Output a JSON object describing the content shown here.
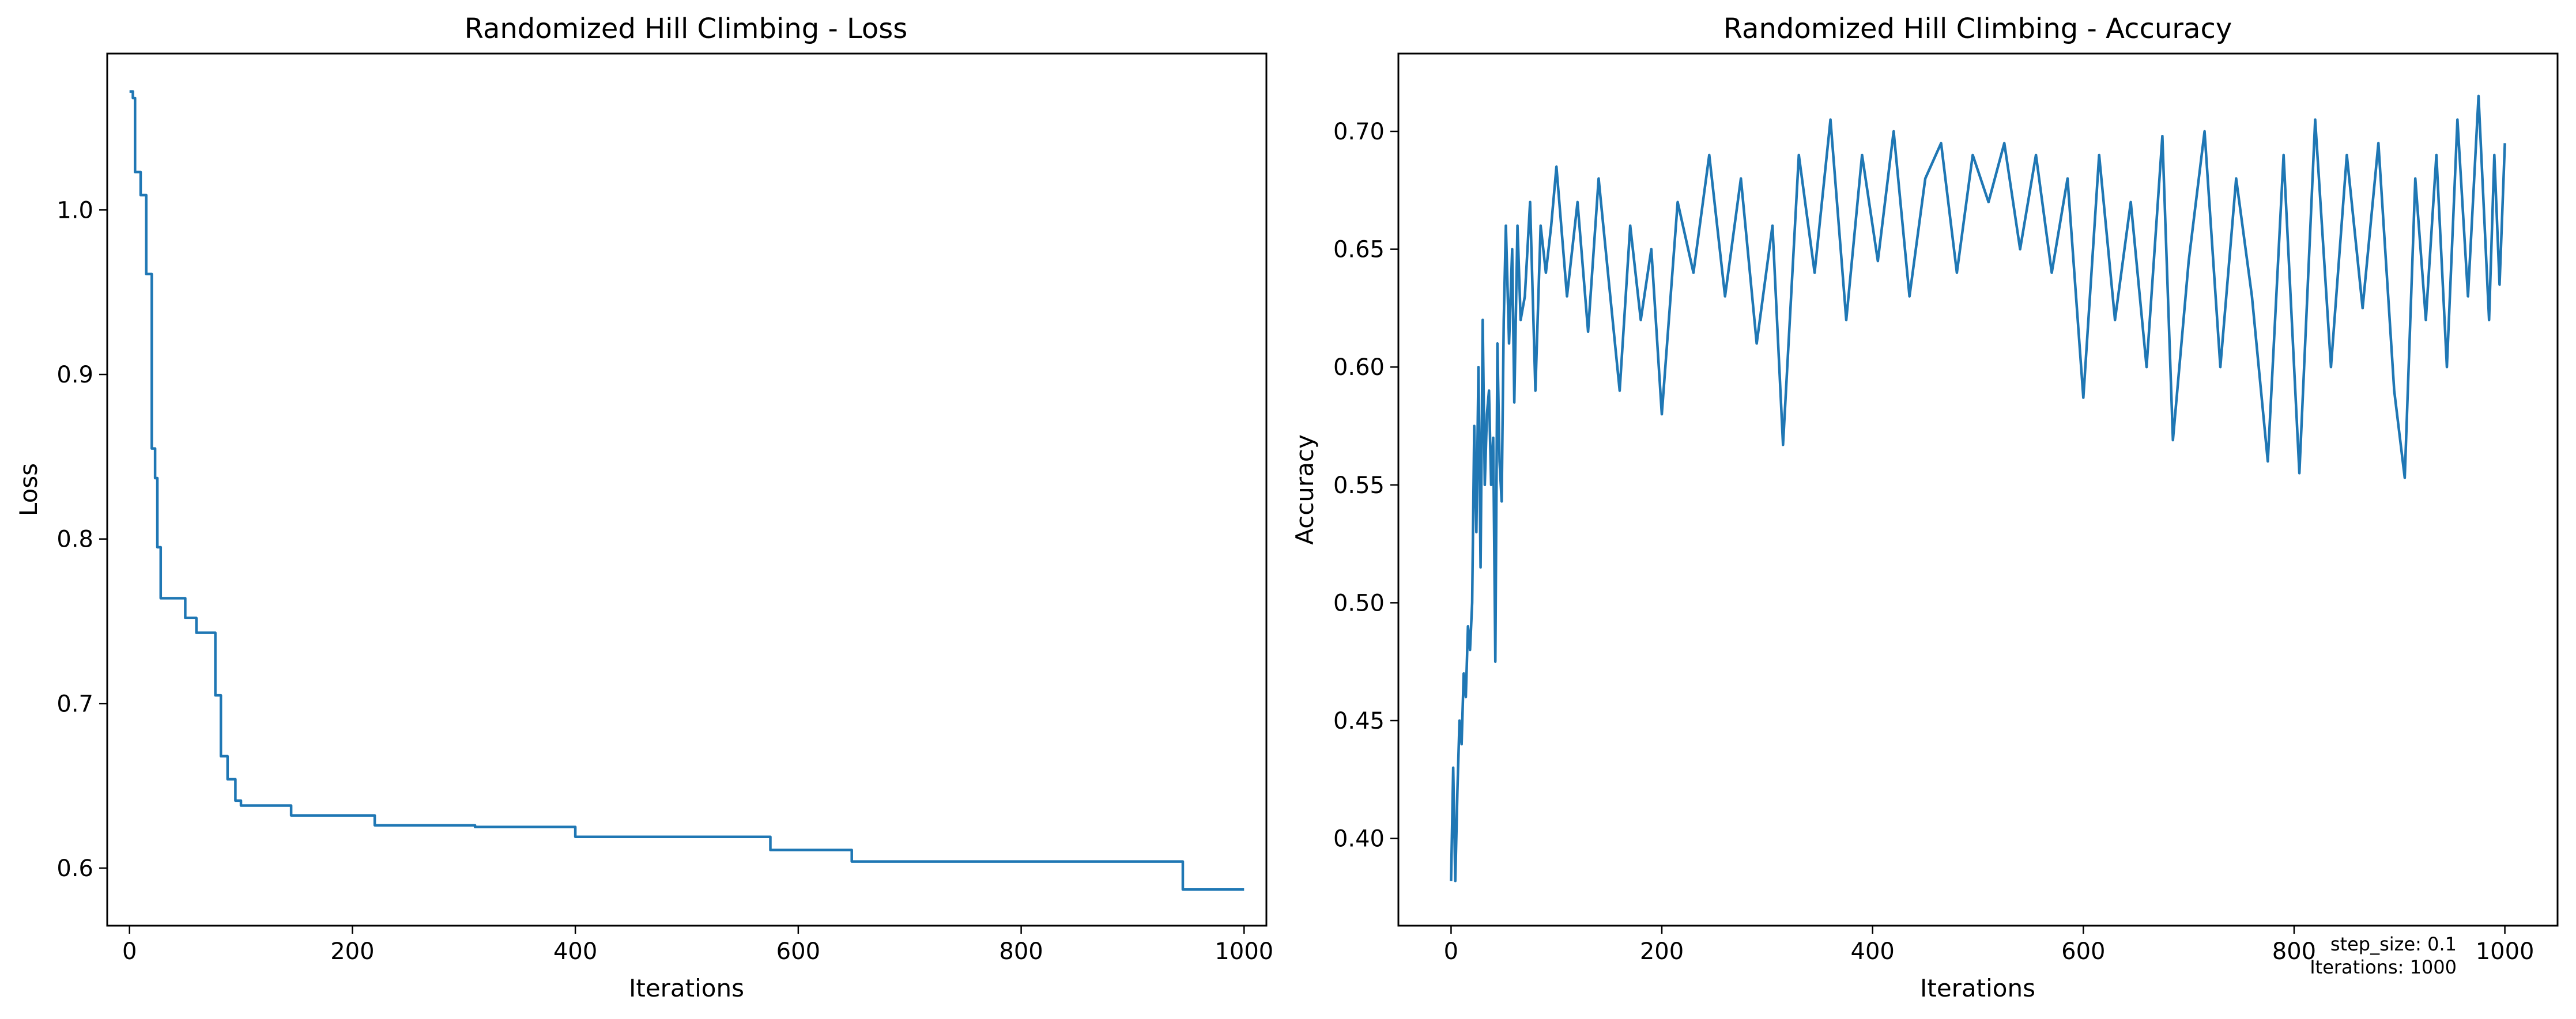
{
  "chart_data": [
    {
      "type": "line",
      "title": "Randomized Hill Climbing - Loss",
      "xlabel": "Iterations",
      "ylabel": "Loss",
      "xlim": [
        -20,
        1020
      ],
      "ylim": [
        0.565,
        1.095
      ],
      "xticks": [
        0,
        200,
        400,
        600,
        800,
        1000
      ],
      "yticks": [
        0.6,
        0.7,
        0.8,
        0.9,
        1.0
      ],
      "step": true,
      "color": "#1f77b4",
      "series": [
        {
          "name": "Loss",
          "x": [
            0,
            3,
            5,
            10,
            15,
            20,
            23,
            25,
            28,
            50,
            60,
            70,
            77,
            82,
            88,
            95,
            100,
            110,
            145,
            220,
            310,
            400,
            575,
            648,
            945,
            1000
          ],
          "y": [
            1.072,
            1.068,
            1.023,
            1.009,
            0.961,
            0.855,
            0.837,
            0.795,
            0.764,
            0.752,
            0.743,
            0.743,
            0.705,
            0.668,
            0.654,
            0.641,
            0.638,
            0.638,
            0.632,
            0.626,
            0.625,
            0.619,
            0.611,
            0.604,
            0.587,
            0.587
          ]
        }
      ]
    },
    {
      "type": "line",
      "title": "Randomized Hill Climbing - Accuracy",
      "xlabel": "Iterations",
      "ylabel": "Accuracy",
      "xlim": [
        -50,
        1050
      ],
      "ylim": [
        0.363,
        0.733
      ],
      "xticks": [
        0,
        200,
        400,
        600,
        800,
        1000
      ],
      "yticks": [
        0.4,
        0.45,
        0.5,
        0.55,
        0.6,
        0.65,
        0.7
      ],
      "color": "#1f77b4",
      "series": [
        {
          "name": "Accuracy",
          "x": [
            0,
            2,
            4,
            6,
            8,
            10,
            12,
            14,
            16,
            18,
            20,
            22,
            24,
            26,
            28,
            30,
            32,
            34,
            36,
            38,
            40,
            42,
            44,
            46,
            48,
            50,
            52,
            55,
            58,
            60,
            63,
            66,
            70,
            75,
            80,
            85,
            90,
            95,
            100,
            110,
            120,
            130,
            140,
            150,
            160,
            170,
            180,
            190,
            200,
            215,
            230,
            245,
            260,
            275,
            290,
            305,
            315,
            330,
            345,
            360,
            375,
            390,
            405,
            420,
            435,
            450,
            465,
            480,
            495,
            510,
            525,
            540,
            555,
            570,
            585,
            600,
            615,
            630,
            645,
            660,
            675,
            685,
            700,
            715,
            730,
            745,
            760,
            775,
            790,
            805,
            820,
            835,
            850,
            865,
            880,
            895,
            905,
            915,
            925,
            935,
            945,
            955,
            965,
            975,
            985,
            990,
            995,
            1000
          ],
          "y": [
            0.382,
            0.43,
            0.382,
            0.42,
            0.45,
            0.44,
            0.47,
            0.46,
            0.49,
            0.48,
            0.5,
            0.575,
            0.53,
            0.6,
            0.515,
            0.62,
            0.55,
            0.58,
            0.59,
            0.55,
            0.57,
            0.475,
            0.61,
            0.56,
            0.543,
            0.62,
            0.66,
            0.61,
            0.65,
            0.585,
            0.66,
            0.62,
            0.63,
            0.67,
            0.59,
            0.66,
            0.64,
            0.66,
            0.685,
            0.63,
            0.67,
            0.615,
            0.68,
            0.635,
            0.59,
            0.66,
            0.62,
            0.65,
            0.58,
            0.67,
            0.64,
            0.69,
            0.63,
            0.68,
            0.61,
            0.66,
            0.567,
            0.69,
            0.64,
            0.705,
            0.62,
            0.69,
            0.645,
            0.7,
            0.63,
            0.68,
            0.695,
            0.64,
            0.69,
            0.67,
            0.695,
            0.65,
            0.69,
            0.64,
            0.68,
            0.587,
            0.69,
            0.62,
            0.67,
            0.6,
            0.698,
            0.569,
            0.645,
            0.7,
            0.6,
            0.68,
            0.63,
            0.56,
            0.69,
            0.555,
            0.705,
            0.6,
            0.69,
            0.625,
            0.695,
            0.59,
            0.553,
            0.68,
            0.62,
            0.69,
            0.6,
            0.705,
            0.63,
            0.715,
            0.62,
            0.69,
            0.635,
            0.695
          ]
        }
      ],
      "annotation": {
        "lines": [
          "step_size: 0.1",
          "Iterations: 1000"
        ],
        "position": "bottom-right"
      }
    }
  ]
}
